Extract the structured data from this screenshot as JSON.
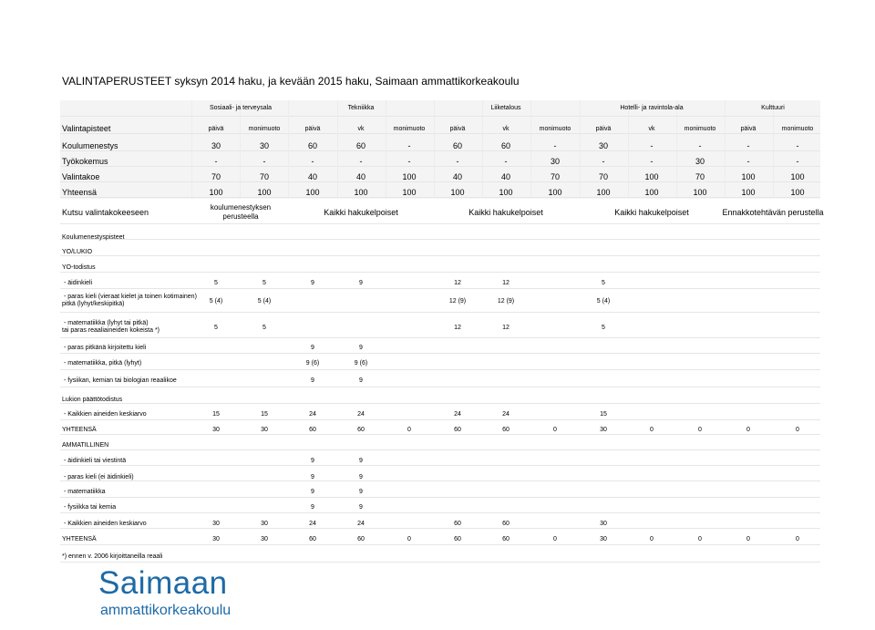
{
  "title": "VALINTAPERUSTEET syksyn 2014 haku, ja kevään 2015 haku, Saimaan ammattikorkeakoulu",
  "fields": [
    "Sosiaali- ja terveysala",
    "Tekniikka",
    "Liiketalous",
    "Hotelli- ja ravintola-ala",
    "Kulttuuri"
  ],
  "summary_rows": [
    {
      "label": "Valintapisteet",
      "cells": [
        "päivä",
        "monimuoto",
        "päivä",
        "vk",
        "monimuoto",
        "päivä",
        "vk",
        "monimuoto",
        "päivä",
        "vk",
        "monimuoto",
        "päivä",
        "monimuoto"
      ]
    },
    {
      "label": "Koulumenestys",
      "cells": [
        "30",
        "30",
        "60",
        "60",
        "-",
        "60",
        "60",
        "-",
        "30",
        "-",
        "-",
        "-",
        "-"
      ]
    },
    {
      "label": "Työkokemus",
      "cells": [
        "-",
        "-",
        "-",
        "-",
        "-",
        "-",
        "-",
        "30",
        "-",
        "-",
        "30",
        "-",
        "-"
      ]
    },
    {
      "label": "Valintakoe",
      "cells": [
        "70",
        "70",
        "40",
        "40",
        "100",
        "40",
        "40",
        "70",
        "70",
        "100",
        "70",
        "100",
        "100"
      ]
    },
    {
      "label": "Yhteensä",
      "cells": [
        "100",
        "100",
        "100",
        "100",
        "100",
        "100",
        "100",
        "100",
        "100",
        "100",
        "100",
        "100",
        "100"
      ]
    }
  ],
  "invite": {
    "label": "Kutsu valintakokeeseen",
    "cells": [
      "koulumenestyksen perusteella",
      "Kaikki hakukelpoiset",
      "Kaikki hakukelpoiset",
      "Kaikki hakukelpoiset",
      "Ennakkotehtävän perustella"
    ]
  },
  "sections": {
    "koulumenestys": "Koulumenestyspisteet",
    "yolukio": "YO/LUKIO",
    "yotodistus": "YO-todistus",
    "lukion": "Lukion päättötodistus",
    "ammatillinen": "AMMATILLINEN"
  },
  "detail_rows": [
    {
      "label": "- äidinkieli",
      "cells": [
        "5",
        "5",
        "9",
        "9",
        "",
        "12",
        "12",
        "",
        "5",
        "",
        "",
        "",
        ""
      ]
    },
    {
      "label": "- paras kieli (vieraat kielet ja toinen kotimainen)",
      "label2": "pitkä (lyhyt/keskipitkä)",
      "cells": [
        "5 (4)",
        "5 (4)",
        "",
        "",
        "",
        "12 (9)",
        "12 (9)",
        "",
        "5 (4)",
        "",
        "",
        "",
        ""
      ]
    },
    {
      "label": "- matematiikka (lyhyt tai pitkä)",
      "label2": "tai paras reaaliaineiden kokeista *)",
      "cells": [
        "5",
        "5",
        "",
        "",
        "",
        "12",
        "12",
        "",
        "5",
        "",
        "",
        "",
        ""
      ]
    },
    {
      "label": "- paras pitkänä kirjoitettu kieli",
      "cells": [
        "",
        "",
        "9",
        "9",
        "",
        "",
        "",
        "",
        "",
        "",
        "",
        "",
        ""
      ]
    },
    {
      "label": "- matematiikka, pitkä (lyhyt)",
      "cells": [
        "",
        "",
        "9 (6)",
        "9 (6)",
        "",
        "",
        "",
        "",
        "",
        "",
        "",
        "",
        ""
      ]
    },
    {
      "label": "- fysiikan, kemian tai biologian reaalikoe",
      "cells": [
        "",
        "",
        "9",
        "9",
        "",
        "",
        "",
        "",
        "",
        "",
        "",
        "",
        ""
      ]
    },
    {
      "label": "- Kaikkien aineiden keskiarvo",
      "cells": [
        "15",
        "15",
        "24",
        "24",
        "",
        "24",
        "24",
        "",
        "15",
        "",
        "",
        "",
        ""
      ]
    },
    {
      "label": "YHTEENSÄ",
      "cells": [
        "30",
        "30",
        "60",
        "60",
        "0",
        "60",
        "60",
        "0",
        "30",
        "0",
        "0",
        "0",
        "0"
      ]
    },
    {
      "label": "- äidinkieli tai viestintä",
      "cells": [
        "",
        "",
        "9",
        "9",
        "",
        "",
        "",
        "",
        "",
        "",
        "",
        "",
        ""
      ]
    },
    {
      "label": "- paras kieli (ei äidinkieli)",
      "cells": [
        "",
        "",
        "9",
        "9",
        "",
        "",
        "",
        "",
        "",
        "",
        "",
        "",
        ""
      ]
    },
    {
      "label": "- matematiikka",
      "cells": [
        "",
        "",
        "9",
        "9",
        "",
        "",
        "",
        "",
        "",
        "",
        "",
        "",
        ""
      ]
    },
    {
      "label": "- fysiikka tai kemia",
      "cells": [
        "",
        "",
        "9",
        "9",
        "",
        "",
        "",
        "",
        "",
        "",
        "",
        "",
        ""
      ]
    },
    {
      "label": "- Kaikkien aineiden keskiarvo",
      "cells": [
        "30",
        "30",
        "24",
        "24",
        "",
        "60",
        "60",
        "",
        "30",
        "",
        "",
        "",
        ""
      ]
    },
    {
      "label": "YHTEENSÄ",
      "cells": [
        "30",
        "30",
        "60",
        "60",
        "0",
        "60",
        "60",
        "0",
        "30",
        "0",
        "0",
        "0",
        "0"
      ]
    }
  ],
  "footnote": "*) ennen v. 2006 kirjoittaneilla reaali",
  "logo": {
    "name": "Saimaan",
    "subtitle": "ammattikorkeakoulu",
    "color": "#1d6aa6"
  }
}
